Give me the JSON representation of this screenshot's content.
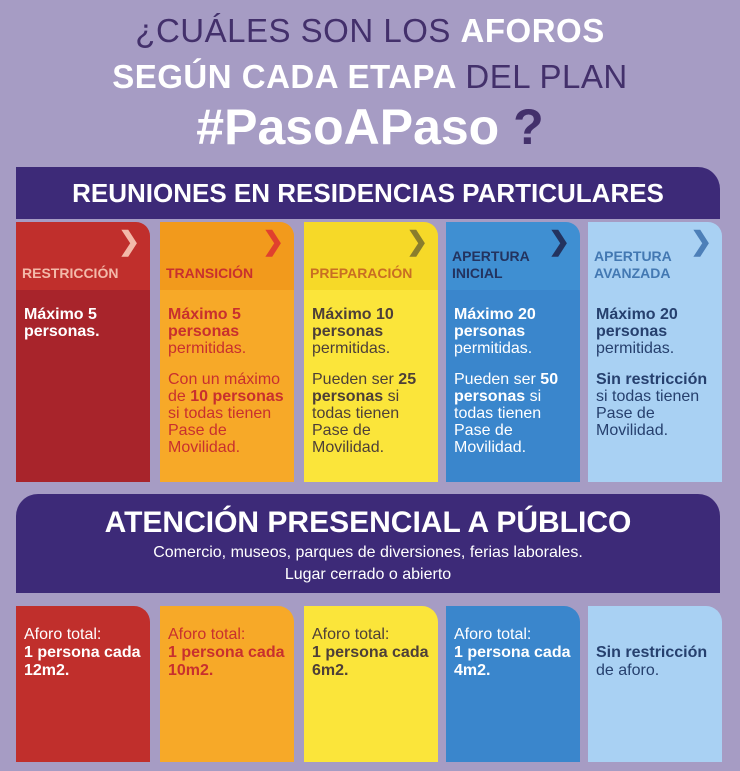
{
  "title": {
    "line1_a": "¿CUÁLES SON LOS ",
    "line1_b": "AFOROS",
    "line2_a": "SEGÚN CADA ETAPA ",
    "line2_b": "DEL PLAN",
    "line3": "#PasoAPaso",
    "line3_q": "?"
  },
  "section1": {
    "title": "REUNIONES EN RESIDENCIAS PARTICULARES"
  },
  "section2": {
    "title": "ATENCIÓN PRESENCIAL A PÚBLICO",
    "subtitle": "Comercio, museos, parques de diversiones, ferias laborales.",
    "subtitle2": "Lugar cerrado o abierto"
  },
  "chevron": "❯",
  "phases": [
    {
      "name_l1": "RESTRICCIÓN",
      "name_l2": "",
      "reu_a_bold": "Máximo 5 personas.",
      "reu_a_rest": "",
      "reu_b_pre": "",
      "reu_b_bold": "",
      "reu_b_post": "",
      "pub_pre": "Aforo total:",
      "pub_bold": "1 persona cada 12m2.",
      "pub_post": "",
      "colors": {
        "header_bg": "#c02f2c",
        "header_fg": "#f3b9a9",
        "chev": "#f3b9a9",
        "body_bg": "#a8242b",
        "text": "#ffffff",
        "bold": "#ffffff",
        "pub_bg": "#c02f2c"
      }
    },
    {
      "name_l1": "TRANSICIÓN",
      "name_l2": "",
      "reu_a_bold": "Máximo 5 personas",
      "reu_a_rest": "permitidas.",
      "reu_b_pre": "Con un máximo de",
      "reu_b_bold": "10 personas",
      "reu_b_post": "si todas tienen Pase de Movilidad.",
      "pub_pre": "Aforo total:",
      "pub_bold": "1 persona cada 10m2.",
      "pub_post": "",
      "colors": {
        "header_bg": "#f29a1c",
        "header_fg": "#c8302e",
        "chev": "#e0402e",
        "body_bg": "#f7a928",
        "text": "#c8302e",
        "bold": "#c8302e",
        "pub_bg": "#f7a928"
      }
    },
    {
      "name_l1": "PREPARACIÓN",
      "name_l2": "",
      "reu_a_bold": "Máximo 10 personas",
      "reu_a_rest": "permitidas.",
      "reu_b_pre": "Pueden ser",
      "reu_b_bold": "25 personas",
      "reu_b_post": "si todas tienen Pase de Movilidad.",
      "pub_pre": "Aforo total:",
      "pub_bold": "1 persona cada 6m2.",
      "pub_post": "",
      "colors": {
        "header_bg": "#f6d928",
        "header_fg": "#c86e23",
        "chev": "#8a7d2c",
        "body_bg": "#fbe53a",
        "text": "#4d3f38",
        "bold": "#4d3f38",
        "pub_bg": "#fbe53a"
      }
    },
    {
      "name_l1": "APERTURA",
      "name_l2": "INICIAL",
      "reu_a_bold": "Máximo 20 personas",
      "reu_a_rest": "permitidas.",
      "reu_b_pre": "Pueden ser",
      "reu_b_bold": "50 personas",
      "reu_b_post": "si todas tienen Pase de Movilidad.",
      "pub_pre": "Aforo total:",
      "pub_bold": "1 persona cada 4m2.",
      "pub_post": "",
      "colors": {
        "header_bg": "#3f8fd2",
        "header_fg": "#23335f",
        "chev": "#23335f",
        "body_bg": "#3a86cc",
        "text": "#ffffff",
        "bold": "#ffffff",
        "pub_bg": "#3a86cc"
      }
    },
    {
      "name_l1": "APERTURA",
      "name_l2": "AVANZADA",
      "reu_a_bold": "Máximo 20 personas",
      "reu_a_rest": "permitidas.",
      "reu_b_pre": "",
      "reu_b_bold": "Sin restricción",
      "reu_b_post": "si todas tienen Pase de Movilidad.",
      "pub_pre": "",
      "pub_bold": "Sin restricción",
      "pub_post": "de aforo.",
      "colors": {
        "header_bg": "#a9d1f3",
        "header_fg": "#4378b2",
        "chev": "#4d7fb8",
        "body_bg": "#a9d1f3",
        "text": "#26406e",
        "bold": "#26406e",
        "pub_bg": "#a9d1f3"
      }
    }
  ]
}
